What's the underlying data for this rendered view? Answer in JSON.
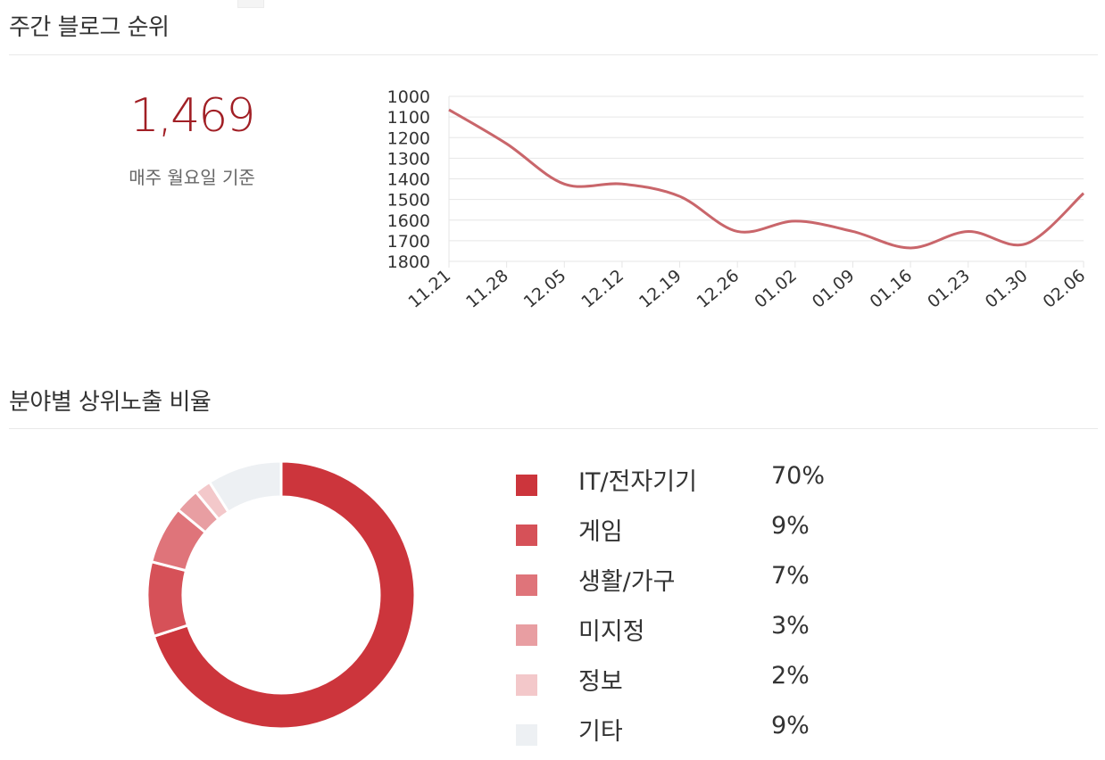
{
  "weekly_rank": {
    "title": "주간 블로그 순위",
    "value": "1,469",
    "caption": "매주 월요일 기준"
  },
  "category_share": {
    "title": "분야별 상위노출 비율"
  },
  "chart_data": [
    {
      "type": "line",
      "x": [
        "11.21",
        "11.28",
        "12.05",
        "12.12",
        "12.19",
        "12.26",
        "01.02",
        "01.09",
        "01.16",
        "01.23",
        "01.30",
        "02.06"
      ],
      "series": [
        {
          "values": [
            1065,
            1230,
            1425,
            1425,
            1485,
            1655,
            1605,
            1655,
            1735,
            1655,
            1715,
            1470
          ],
          "color": "#c9666b"
        }
      ],
      "yticks": [
        1000,
        1100,
        1200,
        1300,
        1400,
        1500,
        1600,
        1700,
        1800
      ],
      "ylim": [
        1800,
        1000
      ],
      "y_inverted": true,
      "grid": true
    },
    {
      "type": "pie",
      "donut": true,
      "labels": [
        "IT/전자기기",
        "게임",
        "생활/가구",
        "미지정",
        "정보",
        "기타"
      ],
      "values": [
        70,
        9,
        7,
        3,
        2,
        9
      ],
      "display_values": [
        "70%",
        "9%",
        "7%",
        "3%",
        "2%",
        "9%"
      ],
      "colors": [
        "#cc353c",
        "#d65158",
        "#df747a",
        "#e89ea2",
        "#f3c8ca",
        "#edf0f3"
      ]
    }
  ]
}
